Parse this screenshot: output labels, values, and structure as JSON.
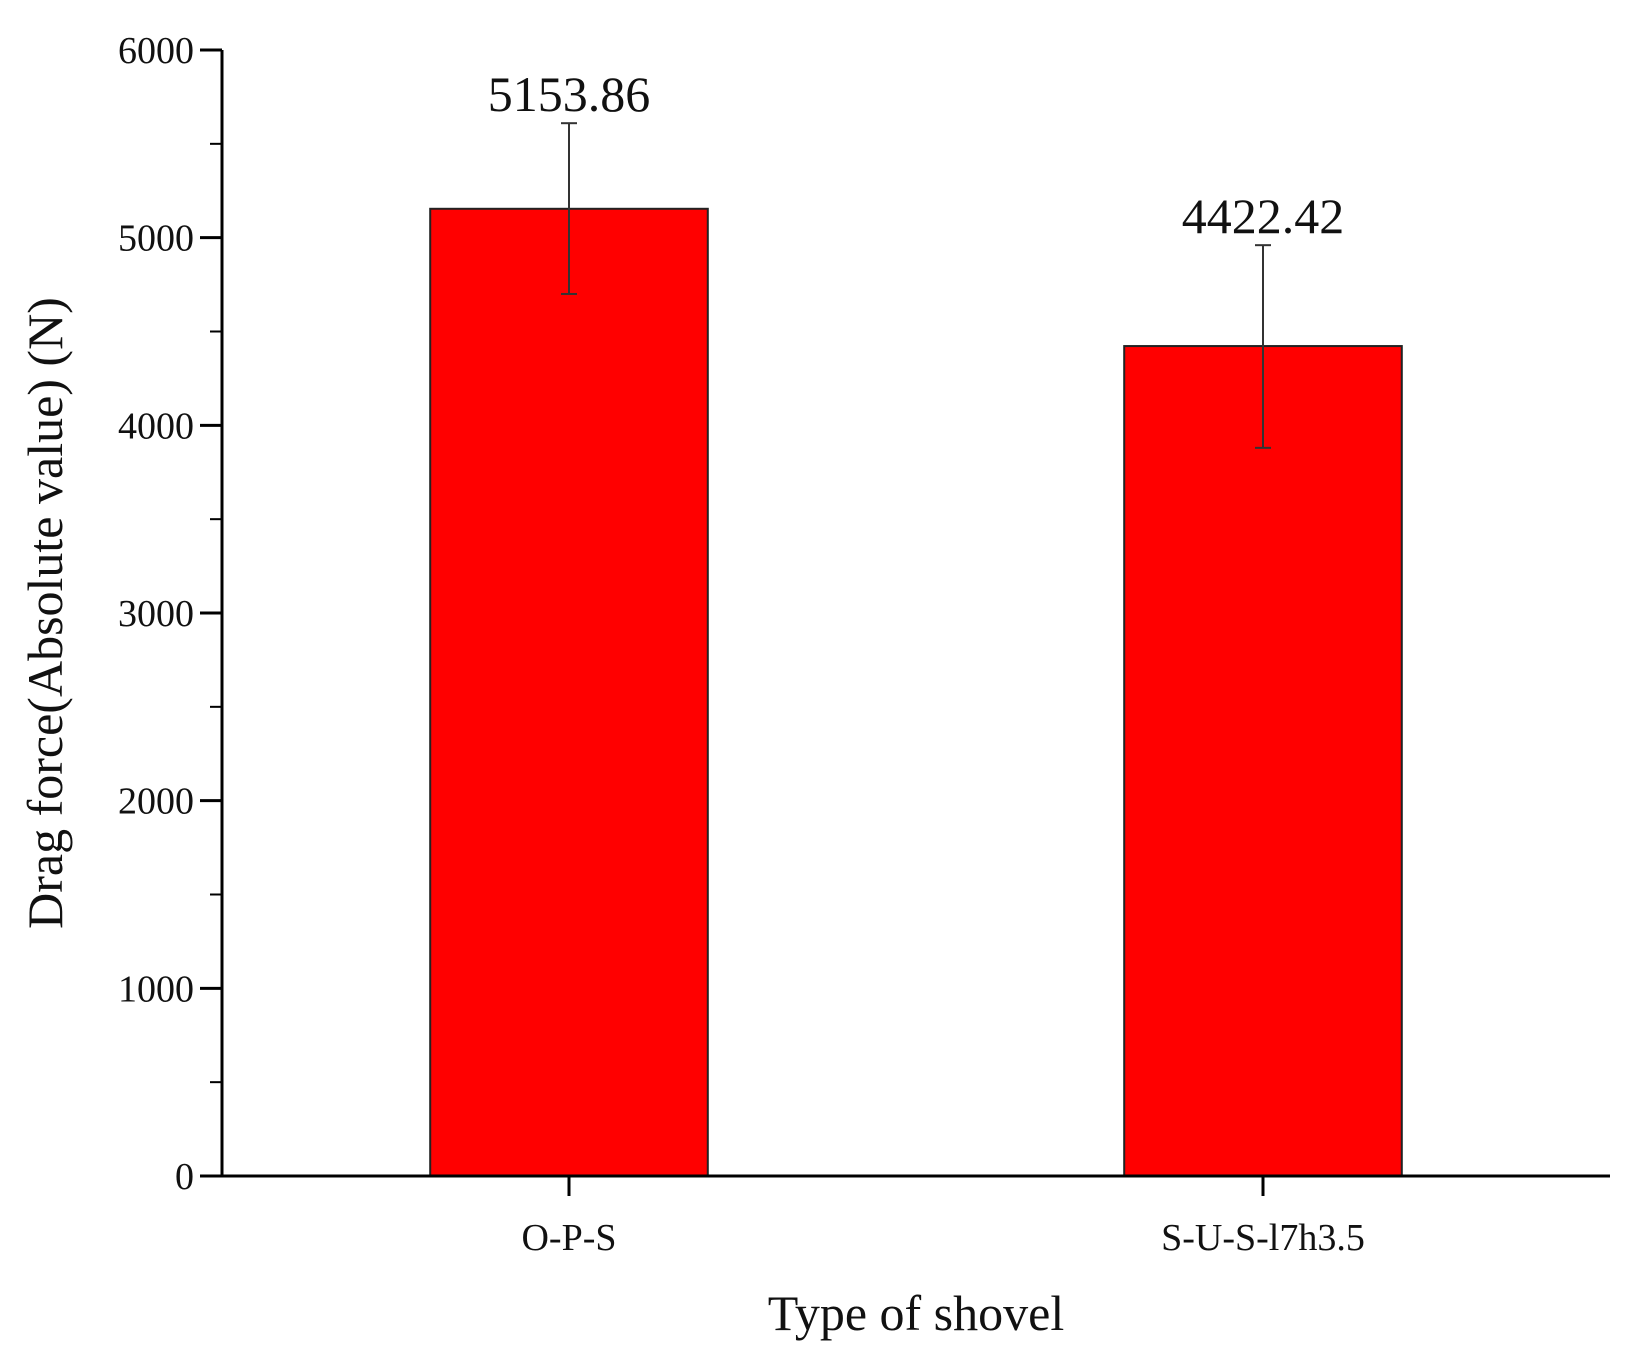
{
  "chart_data": {
    "type": "bar",
    "categories": [
      "O-P-S",
      "S-U-S-l7h3.5"
    ],
    "values": [
      5153.86,
      4422.42
    ],
    "value_labels": [
      "5153.86",
      "4422.42"
    ],
    "error_bars": [
      {
        "low": 4700,
        "high": 5610
      },
      {
        "low": 3880,
        "high": 4960
      }
    ],
    "xlabel": "Type of shovel",
    "ylabel": "Drag force(Absolute value) (N)",
    "ylim": [
      0,
      6000
    ],
    "yticks": [
      0,
      1000,
      2000,
      3000,
      4000,
      5000,
      6000
    ],
    "ytick_labels": [
      "0",
      "1000",
      "2000",
      "3000",
      "4000",
      "5000",
      "6000"
    ],
    "bar_color": "#ff0000",
    "grid": false,
    "legend": "none"
  }
}
